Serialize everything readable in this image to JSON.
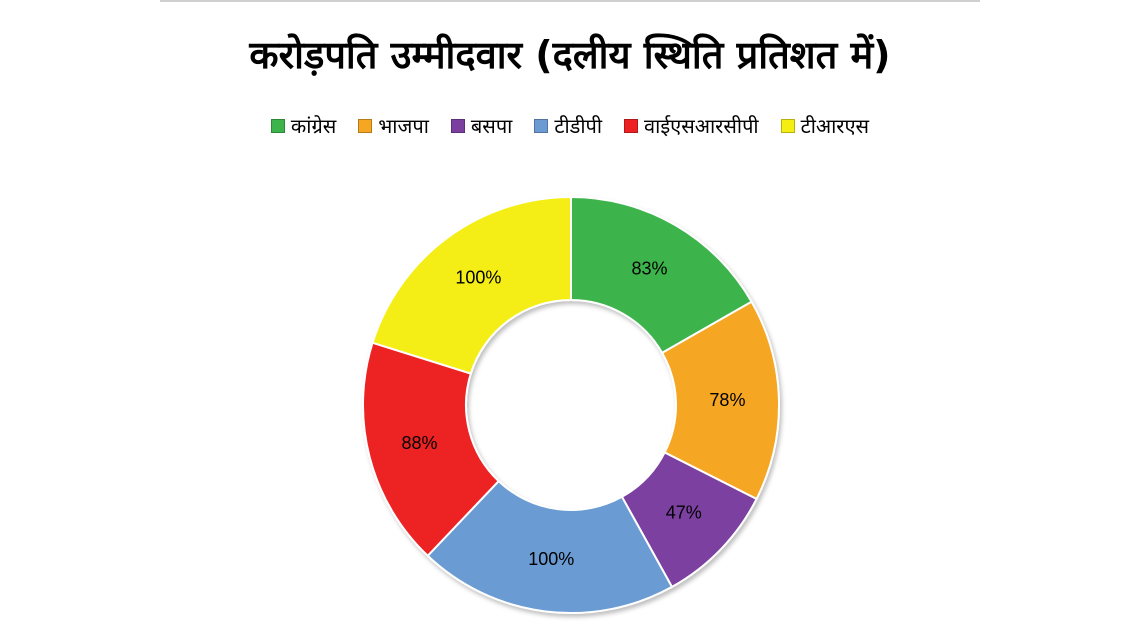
{
  "chart_data": {
    "type": "pie",
    "title": "करोड़पति उम्मीदवार (दलीय स्थिति प्रतिशत में)",
    "legend_position": "top",
    "categories": [
      "कांग्रेस",
      "भाजपा",
      "बसपा",
      "टीडीपी",
      "वाईएसआरसीपी",
      "टीआरएस"
    ],
    "values": [
      83,
      78,
      47,
      100,
      88,
      100
    ],
    "labels": [
      "83%",
      "78%",
      "47%",
      "100%",
      "88%",
      "100%"
    ],
    "colors": [
      "#3cb44b",
      "#f5a623",
      "#7b3fa0",
      "#6b9bd2",
      "#ed2024",
      "#f5ee13"
    ]
  }
}
